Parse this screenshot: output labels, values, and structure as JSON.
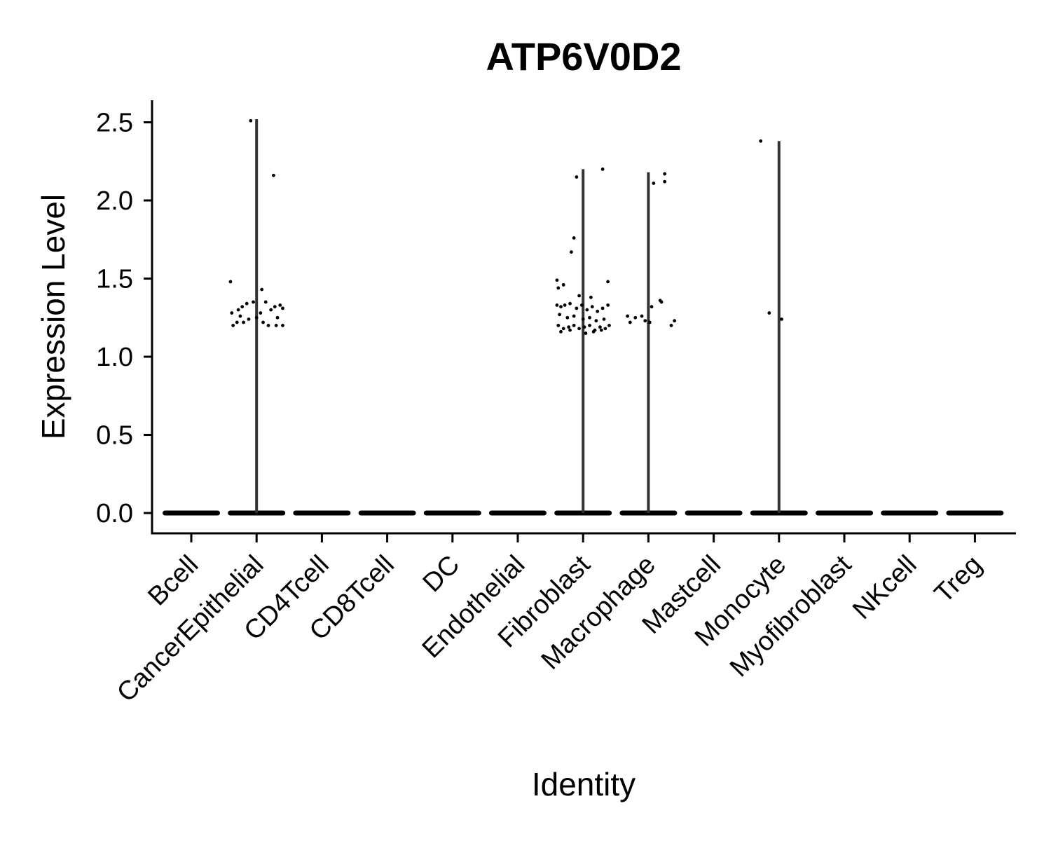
{
  "chart_data": {
    "type": "violin",
    "title": "ATP6V0D2",
    "xlabel": "Identity",
    "ylabel": "Expression Level",
    "ylim": [
      -0.12,
      2.64
    ],
    "yticks": [
      0.0,
      0.5,
      1.0,
      1.5,
      2.0,
      2.5
    ],
    "ytick_labels": [
      "0.0",
      "0.5",
      "1.0",
      "1.5",
      "2.0",
      "2.5"
    ],
    "categories": [
      "Bcell",
      "CancerEpithelial",
      "CD4Tcell",
      "CD8Tcell",
      "DC",
      "Endothelial",
      "Fibroblast",
      "Macrophage",
      "Mastcell",
      "Monocyte",
      "Myofibroblast",
      "NKcell",
      "Treg"
    ],
    "max_values": [
      0,
      2.52,
      0,
      0,
      0,
      0,
      2.2,
      2.18,
      0,
      2.38,
      0,
      0,
      0
    ],
    "points": [
      [],
      [
        {
          "dx": -0.09,
          "y": 2.51
        },
        {
          "dx": 0.26,
          "y": 2.16
        },
        {
          "dx": -0.4,
          "y": 1.48
        },
        {
          "dx": 0.08,
          "y": 1.43
        },
        {
          "dx": -0.28,
          "y": 1.3
        },
        {
          "dx": -0.22,
          "y": 1.32
        },
        {
          "dx": -0.15,
          "y": 1.34
        },
        {
          "dx": -0.05,
          "y": 1.35
        },
        {
          "dx": 0.14,
          "y": 1.35
        },
        {
          "dx": 0.28,
          "y": 1.32
        },
        {
          "dx": 0.36,
          "y": 1.33
        },
        {
          "dx": 0.4,
          "y": 1.31
        },
        {
          "dx": -0.36,
          "y": 1.2
        },
        {
          "dx": -0.3,
          "y": 1.22
        },
        {
          "dx": -0.2,
          "y": 1.22
        },
        {
          "dx": -0.12,
          "y": 1.24
        },
        {
          "dx": 0.0,
          "y": 1.25
        },
        {
          "dx": 0.1,
          "y": 1.22
        },
        {
          "dx": 0.18,
          "y": 1.2
        },
        {
          "dx": 0.3,
          "y": 1.2
        },
        {
          "dx": 0.4,
          "y": 1.2
        },
        {
          "dx": -0.38,
          "y": 1.28
        },
        {
          "dx": -0.25,
          "y": 1.26
        },
        {
          "dx": 0.06,
          "y": 1.28
        },
        {
          "dx": 0.22,
          "y": 1.3
        },
        {
          "dx": 0.32,
          "y": 1.25
        }
      ],
      [],
      [],
      [],
      [],
      [
        {
          "dx": 0.3,
          "y": 2.2
        },
        {
          "dx": -0.1,
          "y": 2.15
        },
        {
          "dx": -0.14,
          "y": 1.76
        },
        {
          "dx": -0.18,
          "y": 1.67
        },
        {
          "dx": -0.4,
          "y": 1.49
        },
        {
          "dx": -0.3,
          "y": 1.46
        },
        {
          "dx": -0.38,
          "y": 1.44
        },
        {
          "dx": 0.38,
          "y": 1.48
        },
        {
          "dx": -0.06,
          "y": 1.39
        },
        {
          "dx": 0.12,
          "y": 1.38
        },
        {
          "dx": -0.4,
          "y": 1.33
        },
        {
          "dx": -0.34,
          "y": 1.32
        },
        {
          "dx": -0.28,
          "y": 1.33
        },
        {
          "dx": -0.2,
          "y": 1.34
        },
        {
          "dx": -0.1,
          "y": 1.31
        },
        {
          "dx": -0.02,
          "y": 1.33
        },
        {
          "dx": 0.06,
          "y": 1.3
        },
        {
          "dx": 0.14,
          "y": 1.32
        },
        {
          "dx": 0.22,
          "y": 1.29
        },
        {
          "dx": 0.3,
          "y": 1.31
        },
        {
          "dx": 0.38,
          "y": 1.33
        },
        {
          "dx": -0.36,
          "y": 1.27
        },
        {
          "dx": -0.24,
          "y": 1.25
        },
        {
          "dx": -0.14,
          "y": 1.26
        },
        {
          "dx": 0.0,
          "y": 1.24
        },
        {
          "dx": 0.1,
          "y": 1.25
        },
        {
          "dx": 0.2,
          "y": 1.23
        },
        {
          "dx": 0.32,
          "y": 1.24
        },
        {
          "dx": -0.38,
          "y": 1.2
        },
        {
          "dx": -0.3,
          "y": 1.18
        },
        {
          "dx": -0.22,
          "y": 1.19
        },
        {
          "dx": -0.14,
          "y": 1.2
        },
        {
          "dx": -0.06,
          "y": 1.18
        },
        {
          "dx": 0.02,
          "y": 1.19
        },
        {
          "dx": 0.1,
          "y": 1.2
        },
        {
          "dx": 0.18,
          "y": 1.17
        },
        {
          "dx": 0.26,
          "y": 1.19
        },
        {
          "dx": 0.34,
          "y": 1.18
        },
        {
          "dx": 0.4,
          "y": 1.2
        },
        {
          "dx": -0.34,
          "y": 1.16
        },
        {
          "dx": -0.2,
          "y": 1.17
        },
        {
          "dx": 0.04,
          "y": 1.15
        },
        {
          "dx": 0.16,
          "y": 1.16
        },
        {
          "dx": 0.28,
          "y": 1.17
        }
      ],
      [
        {
          "dx": 0.25,
          "y": 2.17
        },
        {
          "dx": 0.08,
          "y": 2.11
        },
        {
          "dx": 0.25,
          "y": 2.12
        },
        {
          "dx": -0.32,
          "y": 1.26
        },
        {
          "dx": -0.2,
          "y": 1.25
        },
        {
          "dx": -0.1,
          "y": 1.26
        },
        {
          "dx": 0.05,
          "y": 1.32
        },
        {
          "dx": 0.18,
          "y": 1.36
        },
        {
          "dx": 0.2,
          "y": 1.35
        },
        {
          "dx": -0.28,
          "y": 1.22
        },
        {
          "dx": -0.05,
          "y": 1.23
        },
        {
          "dx": 0.02,
          "y": 1.22
        },
        {
          "dx": 0.35,
          "y": 1.2
        },
        {
          "dx": 0.4,
          "y": 1.23
        }
      ],
      [],
      [
        {
          "dx": -0.28,
          "y": 2.38
        },
        {
          "dx": -0.15,
          "y": 1.28
        },
        {
          "dx": 0.04,
          "y": 1.24
        }
      ],
      [],
      [],
      []
    ]
  }
}
